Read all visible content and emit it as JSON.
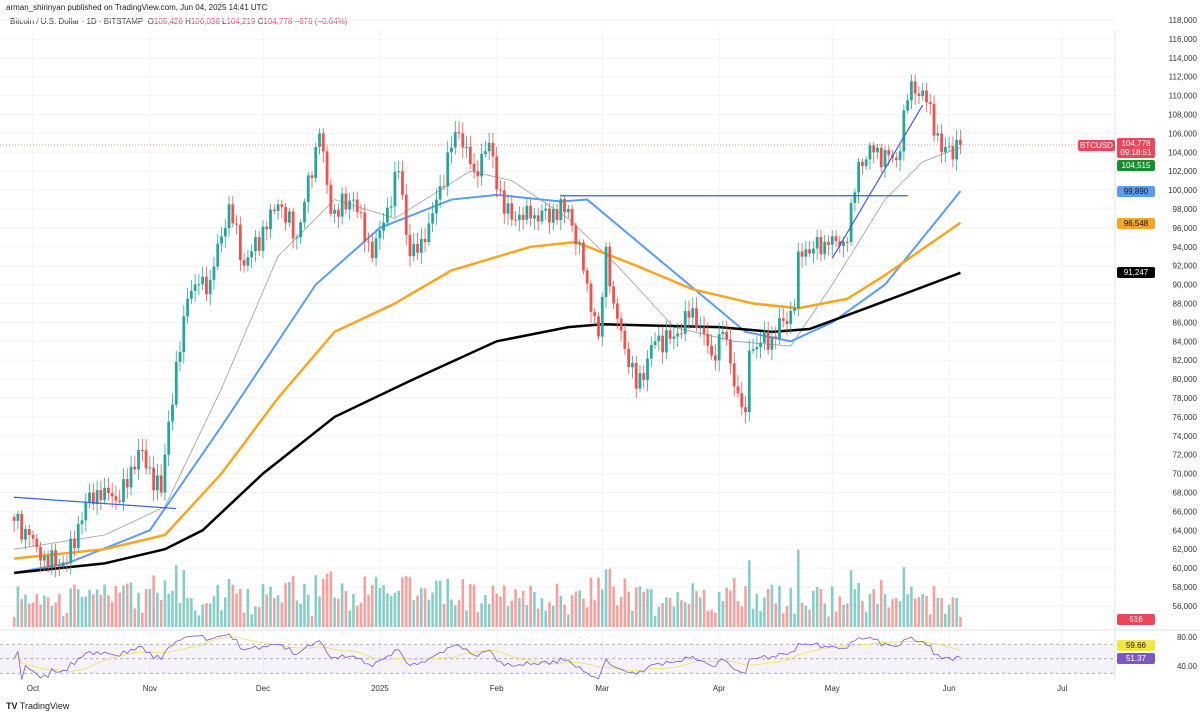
{
  "header": {
    "published": "arman_shirinyan published on TradingView.com, Jun 04, 2025 14:41 UTC",
    "symbol": "Bitcoin / U.S. Dollar · 1D · BITSTAMP",
    "o_label": "O",
    "o": "105,426",
    "h_label": "H",
    "h": "106,036",
    "l_label": "L",
    "l": "104,219",
    "c_label": "C",
    "c": "104,778",
    "change": "−676 (−0.64%)"
  },
  "tags": {
    "symbol": "BTCUSD",
    "price": "104,778",
    "countdown": "09:18:51",
    "ma20": "104,515",
    "ma50": "99,890",
    "ma100": "96,548",
    "ma200": "91,247",
    "volume": "516",
    "rsi_ma": "59.66",
    "rsi": "51.37"
  },
  "colors": {
    "up": "#26a69a",
    "down": "#ef5350",
    "ma20": "#9e9e9e",
    "ma50": "#5b9cf0",
    "ma100": "#f5a623",
    "ma200": "#000000",
    "trendline": "#3d5fd1",
    "rsi": "#7e57c2",
    "rsi_ma": "#f1e27a"
  },
  "logo": "TradingView",
  "chart_data": {
    "type": "candlestick",
    "ylim": [
      54000,
      118000
    ],
    "yticks": [
      56000,
      58000,
      60000,
      62000,
      64000,
      66000,
      68000,
      70000,
      72000,
      74000,
      76000,
      78000,
      80000,
      82000,
      84000,
      86000,
      88000,
      90000,
      92000,
      94000,
      96000,
      98000,
      100000,
      102000,
      104000,
      106000,
      108000,
      110000,
      112000,
      114000,
      116000,
      118000
    ],
    "xticks": [
      {
        "label": "Oct",
        "date": "2024-10-01"
      },
      {
        "label": "Nov",
        "date": "2024-11-01"
      },
      {
        "label": "Dec",
        "date": "2024-12-01"
      },
      {
        "label": "2025",
        "date": "2025-01-01"
      },
      {
        "label": "Feb",
        "date": "2025-02-01"
      },
      {
        "label": "Mar",
        "date": "2025-03-01"
      },
      {
        "label": "Apr",
        "date": "2025-04-01"
      },
      {
        "label": "May",
        "date": "2025-05-01"
      },
      {
        "label": "Jun",
        "date": "2025-06-01"
      },
      {
        "label": "Jul",
        "date": "2025-07-01"
      }
    ],
    "rsi_ticks": [
      "80.00",
      "40.00"
    ],
    "rsi_levels": [
      70,
      50,
      30
    ],
    "close_path": [
      [
        "2024-09-26",
        65000
      ],
      [
        "2024-09-30",
        63500
      ],
      [
        "2024-10-03",
        60800
      ],
      [
        "2024-10-10",
        60500
      ],
      [
        "2024-10-15",
        67000
      ],
      [
        "2024-10-20",
        68500
      ],
      [
        "2024-10-24",
        67000
      ],
      [
        "2024-10-29",
        72500
      ],
      [
        "2024-11-04",
        68000
      ],
      [
        "2024-11-06",
        75500
      ],
      [
        "2024-11-11",
        88500
      ],
      [
        "2024-11-13",
        90000
      ],
      [
        "2024-11-17",
        90500
      ],
      [
        "2024-11-22",
        98500
      ],
      [
        "2024-11-26",
        92000
      ],
      [
        "2024-12-05",
        98500
      ],
      [
        "2024-12-10",
        95000
      ],
      [
        "2024-12-16",
        106000
      ],
      [
        "2024-12-19",
        97500
      ],
      [
        "2024-12-25",
        99000
      ],
      [
        "2024-12-30",
        92800
      ],
      [
        "2025-01-06",
        102000
      ],
      [
        "2025-01-09",
        93000
      ],
      [
        "2025-01-13",
        94500
      ],
      [
        "2025-01-20",
        104500
      ],
      [
        "2025-01-22",
        106000
      ],
      [
        "2025-01-26",
        102000
      ],
      [
        "2025-01-30",
        105000
      ],
      [
        "2025-02-03",
        97500
      ],
      [
        "2025-02-10",
        97000
      ],
      [
        "2025-02-20",
        98000
      ],
      [
        "2025-02-24",
        91500
      ],
      [
        "2025-02-28",
        84500
      ],
      [
        "2025-03-02",
        94000
      ],
      [
        "2025-03-04",
        88000
      ],
      [
        "2025-03-10",
        79000
      ],
      [
        "2025-03-15",
        84000
      ],
      [
        "2025-03-20",
        84500
      ],
      [
        "2025-03-25",
        87500
      ],
      [
        "2025-03-30",
        82500
      ],
      [
        "2025-04-02",
        85000
      ],
      [
        "2025-04-06",
        78500
      ],
      [
        "2025-04-08",
        76500
      ],
      [
        "2025-04-09",
        83000
      ],
      [
        "2025-04-15",
        84500
      ],
      [
        "2025-04-21",
        87500
      ],
      [
        "2025-04-22",
        93500
      ],
      [
        "2025-04-30",
        94200
      ],
      [
        "2025-05-05",
        94500
      ],
      [
        "2025-05-08",
        103000
      ],
      [
        "2025-05-12",
        104000
      ],
      [
        "2025-05-18",
        103200
      ],
      [
        "2025-05-21",
        109500
      ],
      [
        "2025-05-22",
        111500
      ],
      [
        "2025-05-26",
        109300
      ],
      [
        "2025-05-29",
        106000
      ],
      [
        "2025-05-30",
        104000
      ],
      [
        "2025-06-04",
        104778
      ]
    ],
    "series": [
      {
        "name": "MA20",
        "values": [
          [
            "2024-09-26",
            62000
          ],
          [
            "2024-10-20",
            63500
          ],
          [
            "2024-11-05",
            66500
          ],
          [
            "2024-11-20",
            79000
          ],
          [
            "2024-12-05",
            93000
          ],
          [
            "2024-12-20",
            99000
          ],
          [
            "2025-01-05",
            97000
          ],
          [
            "2025-01-25",
            102000
          ],
          [
            "2025-02-05",
            101000
          ],
          [
            "2025-02-20",
            97000
          ],
          [
            "2025-03-05",
            92000
          ],
          [
            "2025-03-20",
            85500
          ],
          [
            "2025-04-05",
            84000
          ],
          [
            "2025-04-20",
            83500
          ],
          [
            "2025-05-01",
            90000
          ],
          [
            "2025-05-15",
            99000
          ],
          [
            "2025-05-25",
            103000
          ],
          [
            "2025-06-04",
            104515
          ]
        ]
      },
      {
        "name": "MA50",
        "values": [
          [
            "2024-09-26",
            59500
          ],
          [
            "2024-10-10",
            60500
          ],
          [
            "2024-11-01",
            64000
          ],
          [
            "2024-11-20",
            75000
          ],
          [
            "2024-12-15",
            90000
          ],
          [
            "2025-01-01",
            96000
          ],
          [
            "2025-01-20",
            99000
          ],
          [
            "2025-02-01",
            99500
          ],
          [
            "2025-02-18",
            98800
          ],
          [
            "2025-02-25",
            99000
          ],
          [
            "2025-04-08",
            85000
          ],
          [
            "2025-04-20",
            84000
          ],
          [
            "2025-05-01",
            86000
          ],
          [
            "2025-05-15",
            90000
          ],
          [
            "2025-06-04",
            99890
          ]
        ]
      },
      {
        "name": "MA100",
        "values": [
          [
            "2024-09-26",
            61000
          ],
          [
            "2024-10-20",
            62000
          ],
          [
            "2024-11-05",
            63500
          ],
          [
            "2024-11-20",
            70000
          ],
          [
            "2024-12-05",
            78000
          ],
          [
            "2024-12-20",
            85000
          ],
          [
            "2025-01-05",
            88000
          ],
          [
            "2025-01-20",
            91500
          ],
          [
            "2025-02-10",
            94000
          ],
          [
            "2025-02-22",
            94500
          ],
          [
            "2025-03-10",
            92000
          ],
          [
            "2025-03-25",
            89500
          ],
          [
            "2025-04-10",
            88000
          ],
          [
            "2025-04-22",
            87500
          ],
          [
            "2025-05-05",
            88500
          ],
          [
            "2025-05-15",
            91000
          ],
          [
            "2025-06-04",
            96548
          ]
        ]
      },
      {
        "name": "MA200",
        "values": [
          [
            "2024-09-26",
            59500
          ],
          [
            "2024-10-20",
            60500
          ],
          [
            "2024-11-05",
            62000
          ],
          [
            "2024-11-15",
            64000
          ],
          [
            "2024-12-01",
            70000
          ],
          [
            "2024-12-20",
            76000
          ],
          [
            "2025-01-10",
            80000
          ],
          [
            "2025-02-01",
            84000
          ],
          [
            "2025-02-20",
            85500
          ],
          [
            "2025-03-01",
            85800
          ],
          [
            "2025-04-01",
            85500
          ],
          [
            "2025-04-15",
            85000
          ],
          [
            "2025-04-25",
            85300
          ],
          [
            "2025-05-10",
            87500
          ],
          [
            "2025-06-04",
            91247
          ]
        ]
      }
    ],
    "trendlines": [
      [
        [
          "2024-09-26",
          67500
        ],
        [
          "2024-11-08",
          66300
        ]
      ],
      [
        [
          "2025-02-18",
          99400
        ],
        [
          "2025-05-21",
          99400
        ]
      ],
      [
        [
          "2025-05-01",
          92800
        ],
        [
          "2025-05-25",
          109000
        ]
      ]
    ],
    "last_volume": 516
  }
}
